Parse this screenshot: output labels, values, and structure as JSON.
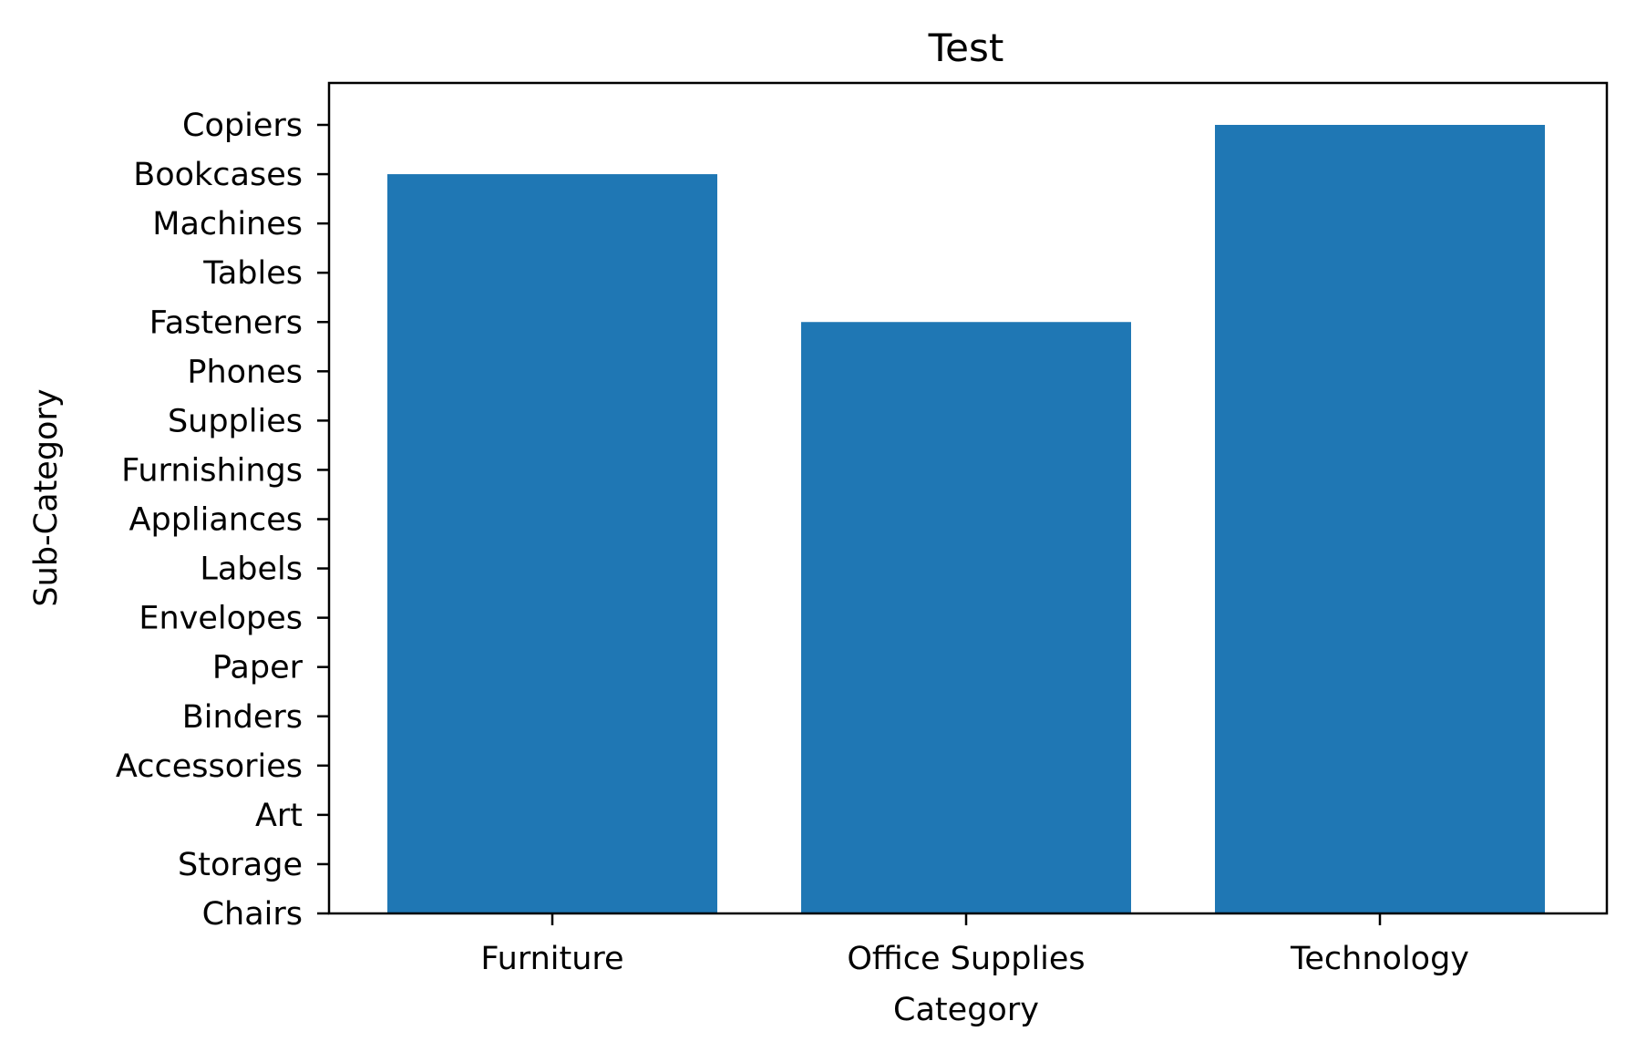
{
  "chart_data": {
    "type": "bar",
    "title": "Test",
    "xlabel": "Category",
    "ylabel": "Sub-Category",
    "categories": [
      "Furniture",
      "Office Supplies",
      "Technology"
    ],
    "y_categories": [
      "Chairs",
      "Storage",
      "Art",
      "Accessories",
      "Binders",
      "Paper",
      "Envelopes",
      "Labels",
      "Appliances",
      "Furnishings",
      "Supplies",
      "Phones",
      "Fasteners",
      "Tables",
      "Machines",
      "Bookcases",
      "Copiers"
    ],
    "values": [
      "Bookcases",
      "Fasteners",
      "Copiers"
    ],
    "grid": false,
    "bar_color": "#1f77b4"
  }
}
